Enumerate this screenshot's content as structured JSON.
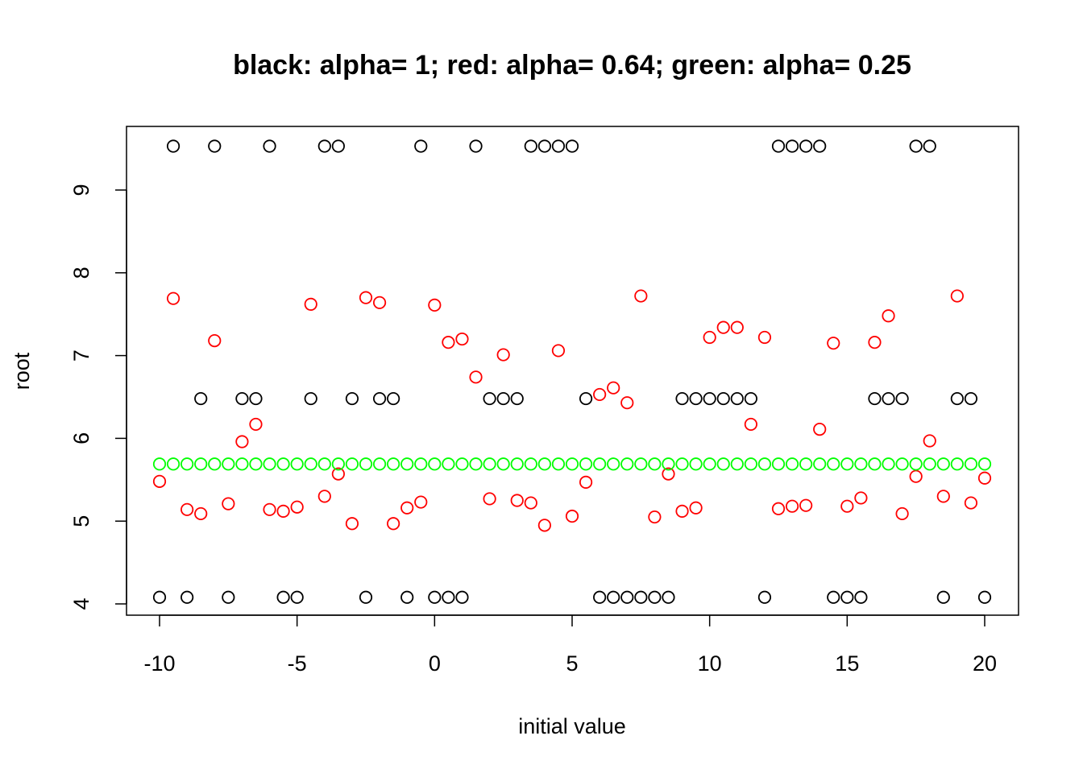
{
  "chart_data": {
    "type": "scatter",
    "title": "black: alpha= 1; red: alpha= 0.64; green: alpha= 0.25",
    "xlabel": "initial value",
    "ylabel": "root",
    "xlim": [
      -10,
      20
    ],
    "ylim": [
      4,
      9.55
    ],
    "x_ticks": [
      "-10",
      "-5",
      "0",
      "5",
      "10",
      "15",
      "20"
    ],
    "y_ticks": [
      "4",
      "5",
      "6",
      "7",
      "8",
      "9"
    ],
    "grid": false,
    "legend": "none",
    "marker": "open-circle",
    "series": [
      {
        "color": "#000000",
        "points": [
          [
            -10,
            4.08
          ],
          [
            -9.5,
            9.53
          ],
          [
            -9,
            4.08
          ],
          [
            -8.5,
            6.48
          ],
          [
            -8,
            9.53
          ],
          [
            -7.5,
            4.08
          ],
          [
            -7,
            6.48
          ],
          [
            -6.5,
            6.48
          ],
          [
            -6,
            9.53
          ],
          [
            -5.5,
            4.08
          ],
          [
            -5,
            4.08
          ],
          [
            -4.5,
            6.48
          ],
          [
            -4,
            9.53
          ],
          [
            -3.5,
            9.53
          ],
          [
            -3,
            6.48
          ],
          [
            -2.5,
            4.08
          ],
          [
            -2,
            6.48
          ],
          [
            -1.5,
            6.48
          ],
          [
            -1,
            4.08
          ],
          [
            -0.5,
            9.53
          ],
          [
            0,
            4.08
          ],
          [
            0.5,
            4.08
          ],
          [
            1,
            4.08
          ],
          [
            1.5,
            9.53
          ],
          [
            2,
            6.48
          ],
          [
            2.5,
            6.48
          ],
          [
            3,
            6.48
          ],
          [
            3.5,
            9.53
          ],
          [
            4,
            9.53
          ],
          [
            4.5,
            9.53
          ],
          [
            5,
            9.53
          ],
          [
            5.5,
            6.48
          ],
          [
            6,
            4.08
          ],
          [
            6.5,
            4.08
          ],
          [
            7,
            4.08
          ],
          [
            7.5,
            4.08
          ],
          [
            8,
            4.08
          ],
          [
            8.5,
            4.08
          ],
          [
            9,
            6.48
          ],
          [
            9.5,
            6.48
          ],
          [
            10,
            6.48
          ],
          [
            10.5,
            6.48
          ],
          [
            11,
            6.48
          ],
          [
            11.5,
            6.48
          ],
          [
            12,
            4.08
          ],
          [
            12.5,
            9.53
          ],
          [
            13,
            9.53
          ],
          [
            13.5,
            9.53
          ],
          [
            14,
            9.53
          ],
          [
            14.5,
            4.08
          ],
          [
            15,
            4.08
          ],
          [
            15.5,
            4.08
          ],
          [
            16,
            6.48
          ],
          [
            16.5,
            6.48
          ],
          [
            17,
            6.48
          ],
          [
            17.5,
            9.53
          ],
          [
            18,
            9.53
          ],
          [
            18.5,
            4.08
          ],
          [
            19,
            6.48
          ],
          [
            19.5,
            6.48
          ],
          [
            20,
            4.08
          ]
        ]
      },
      {
        "color": "#ff0000",
        "points": [
          [
            -10,
            5.48
          ],
          [
            -9.5,
            7.69
          ],
          [
            -9,
            5.14
          ],
          [
            -8.5,
            5.09
          ],
          [
            -8,
            7.18
          ],
          [
            -7.5,
            5.21
          ],
          [
            -7,
            5.96
          ],
          [
            -6.5,
            6.17
          ],
          [
            -6,
            5.14
          ],
          [
            -5.5,
            5.12
          ],
          [
            -5,
            5.17
          ],
          [
            -4.5,
            7.62
          ],
          [
            -4,
            5.3
          ],
          [
            -3.5,
            5.57
          ],
          [
            -3,
            4.97
          ],
          [
            -2.5,
            7.7
          ],
          [
            -2,
            7.64
          ],
          [
            -1.5,
            4.97
          ],
          [
            -1,
            5.16
          ],
          [
            -0.5,
            5.23
          ],
          [
            0,
            7.61
          ],
          [
            0.5,
            7.16
          ],
          [
            1,
            7.2
          ],
          [
            1.5,
            6.74
          ],
          [
            2,
            5.27
          ],
          [
            2.5,
            7.01
          ],
          [
            3,
            5.25
          ],
          [
            3.5,
            5.22
          ],
          [
            4,
            4.95
          ],
          [
            4.5,
            7.06
          ],
          [
            5,
            5.06
          ],
          [
            5.5,
            5.47
          ],
          [
            6,
            6.53
          ],
          [
            6.5,
            6.61
          ],
          [
            7,
            6.43
          ],
          [
            7.5,
            7.72
          ],
          [
            8,
            5.05
          ],
          [
            8.5,
            5.57
          ],
          [
            9,
            5.12
          ],
          [
            9.5,
            5.16
          ],
          [
            10,
            7.22
          ],
          [
            10.5,
            7.34
          ],
          [
            11,
            7.34
          ],
          [
            11.5,
            6.17
          ],
          [
            12,
            7.22
          ],
          [
            12.5,
            5.15
          ],
          [
            13,
            5.18
          ],
          [
            13.5,
            5.19
          ],
          [
            14,
            6.11
          ],
          [
            14.5,
            7.15
          ],
          [
            15,
            5.18
          ],
          [
            15.5,
            5.28
          ],
          [
            16,
            7.16
          ],
          [
            16.5,
            7.48
          ],
          [
            17,
            5.09
          ],
          [
            17.5,
            5.54
          ],
          [
            18,
            5.97
          ],
          [
            18.5,
            5.3
          ],
          [
            19,
            7.72
          ],
          [
            19.5,
            5.22
          ],
          [
            20,
            5.52
          ]
        ]
      },
      {
        "color": "#00ff00",
        "points": [
          [
            -10,
            5.69
          ],
          [
            -9.5,
            5.69
          ],
          [
            -9,
            5.69
          ],
          [
            -8.5,
            5.69
          ],
          [
            -8,
            5.69
          ],
          [
            -7.5,
            5.69
          ],
          [
            -7,
            5.69
          ],
          [
            -6.5,
            5.69
          ],
          [
            -6,
            5.69
          ],
          [
            -5.5,
            5.69
          ],
          [
            -5,
            5.69
          ],
          [
            -4.5,
            5.69
          ],
          [
            -4,
            5.69
          ],
          [
            -3.5,
            5.69
          ],
          [
            -3,
            5.69
          ],
          [
            -2.5,
            5.69
          ],
          [
            -2,
            5.69
          ],
          [
            -1.5,
            5.69
          ],
          [
            -1,
            5.69
          ],
          [
            -0.5,
            5.69
          ],
          [
            0,
            5.69
          ],
          [
            0.5,
            5.69
          ],
          [
            1,
            5.69
          ],
          [
            1.5,
            5.69
          ],
          [
            2,
            5.69
          ],
          [
            2.5,
            5.69
          ],
          [
            3,
            5.69
          ],
          [
            3.5,
            5.69
          ],
          [
            4,
            5.69
          ],
          [
            4.5,
            5.69
          ],
          [
            5,
            5.69
          ],
          [
            5.5,
            5.69
          ],
          [
            6,
            5.69
          ],
          [
            6.5,
            5.69
          ],
          [
            7,
            5.69
          ],
          [
            7.5,
            5.69
          ],
          [
            8,
            5.69
          ],
          [
            8.5,
            5.69
          ],
          [
            9,
            5.69
          ],
          [
            9.5,
            5.69
          ],
          [
            10,
            5.69
          ],
          [
            10.5,
            5.69
          ],
          [
            11,
            5.69
          ],
          [
            11.5,
            5.69
          ],
          [
            12,
            5.69
          ],
          [
            12.5,
            5.69
          ],
          [
            13,
            5.69
          ],
          [
            13.5,
            5.69
          ],
          [
            14,
            5.69
          ],
          [
            14.5,
            5.69
          ],
          [
            15,
            5.69
          ],
          [
            15.5,
            5.69
          ],
          [
            16,
            5.69
          ],
          [
            16.5,
            5.69
          ],
          [
            17,
            5.69
          ],
          [
            17.5,
            5.69
          ],
          [
            18,
            5.69
          ],
          [
            18.5,
            5.69
          ],
          [
            19,
            5.69
          ],
          [
            19.5,
            5.69
          ],
          [
            20,
            5.69
          ]
        ]
      }
    ]
  }
}
